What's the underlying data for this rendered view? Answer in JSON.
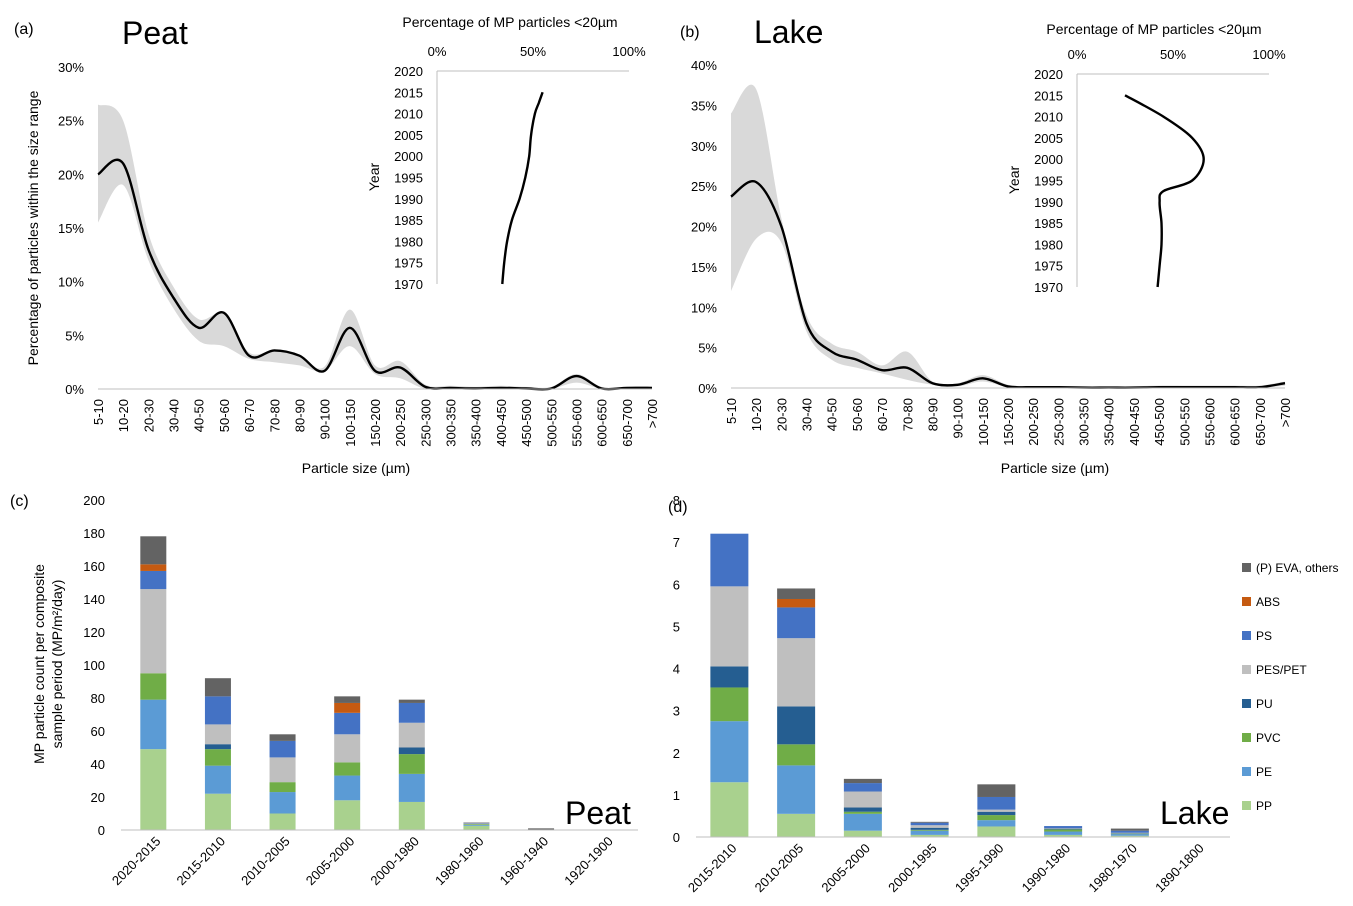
{
  "colors": {
    "band": "#d9d9d9",
    "line": "#000000",
    "axis": "#bfbfbf",
    "PP": "#a9d18e",
    "PE": "#5b9bd5",
    "PVC": "#70ad47",
    "PU": "#255e91",
    "PES/PET": "#bfbfbf",
    "PS": "#4472c4",
    "ABS": "#c55a11",
    "(P) EVA, others": "#636363"
  },
  "chart_data": [
    {
      "id": "a",
      "panel_label": "(a)",
      "type": "line",
      "title": "Peat",
      "xlabel": "Particle size (µm)",
      "ylabel": "Percentage of particles within the size range",
      "categories": [
        "5-10",
        "10-20",
        "20-30",
        "30-40",
        "40-50",
        "50-60",
        "60-70",
        "70-80",
        "80-90",
        "90-100",
        "100-150",
        "150-200",
        "200-250",
        "250-300",
        "300-350",
        "350-400",
        "400-450",
        "450-500",
        "500-550",
        "550-600",
        "600-650",
        "650-700",
        ">700"
      ],
      "ylim": [
        0,
        0.3
      ],
      "yticks": [
        "0%",
        "5%",
        "10%",
        "15%",
        "20%",
        "25%",
        "30%"
      ],
      "series": [
        {
          "values": [
            0.2,
            0.21,
            0.13,
            0.085,
            0.057,
            0.071,
            0.031,
            0.036,
            0.031,
            0.017,
            0.057,
            0.017,
            0.02,
            0.002,
            0.001,
            0.0005,
            0.001,
            0.0005,
            0.0005,
            0.012,
            0.0005,
            0.001,
            0.001
          ]
        }
      ],
      "band_lower": [
        0.155,
        0.19,
        0.12,
        0.075,
        0.045,
        0.04,
        0.028,
        0.025,
        0.022,
        0.017,
        0.04,
        0.014,
        0.01,
        0.0,
        0.0,
        0.0,
        0.0,
        0.0,
        0.0,
        0.006,
        0.0,
        0.0,
        0.0
      ],
      "band_upper": [
        0.265,
        0.25,
        0.145,
        0.095,
        0.065,
        0.07,
        0.034,
        0.036,
        0.031,
        0.021,
        0.074,
        0.022,
        0.026,
        0.004,
        0.003,
        0.002,
        0.003,
        0.002,
        0.002,
        0.014,
        0.002,
        0.002,
        0.002
      ],
      "inset": {
        "title": "Percentage of MP particles <20µm",
        "ylabel": "Year",
        "xticks": [
          "0%",
          "50%",
          "100%"
        ],
        "xlim": [
          0,
          1
        ],
        "yticks": [
          "2020",
          "2015",
          "2010",
          "2005",
          "2000",
          "1995",
          "1990",
          "1985",
          "1980",
          "1975",
          "1970"
        ],
        "ylim": [
          1970,
          2020
        ],
        "x": [
          0.34,
          0.35,
          0.365,
          0.39,
          0.43,
          0.46,
          0.48,
          0.49,
          0.51,
          0.53,
          0.55
        ],
        "y": [
          1970,
          1975,
          1980,
          1985,
          1990,
          1995,
          2000,
          2005,
          2010,
          2012.5,
          2015
        ]
      }
    },
    {
      "id": "b",
      "panel_label": "(b)",
      "type": "line",
      "title": "Lake",
      "xlabel": "Particle size (µm)",
      "ylabel": "",
      "categories": [
        "5-10",
        "10-20",
        "20-30",
        "30-40",
        "40-50",
        "50-60",
        "60-70",
        "70-80",
        "80-90",
        "90-100",
        "100-150",
        "150-200",
        "200-250",
        "250-300",
        "300-350",
        "350-400",
        "400-450",
        "450-500",
        "500-550",
        "550-600",
        "600-650",
        "650-700",
        ">700"
      ],
      "ylim": [
        0,
        0.4
      ],
      "yticks": [
        "0%",
        "5%",
        "10%",
        "15%",
        "20%",
        "25%",
        "30%",
        "35%",
        "40%"
      ],
      "series": [
        {
          "values": [
            0.237,
            0.255,
            0.2,
            0.08,
            0.045,
            0.035,
            0.022,
            0.025,
            0.006,
            0.004,
            0.012,
            0.002,
            0.001,
            0.001,
            0.0005,
            0.0005,
            0.0005,
            0.001,
            0.001,
            0.001,
            0.001,
            0.001,
            0.006
          ]
        }
      ],
      "band_lower": [
        0.12,
        0.185,
        0.18,
        0.07,
        0.035,
        0.025,
        0.018,
        0.01,
        0.004,
        0.002,
        0.008,
        0.001,
        0.0,
        0.0,
        0.0,
        0.0,
        0.0,
        0.0,
        0.0,
        0.0,
        0.0,
        0.0,
        0.003
      ],
      "band_upper": [
        0.34,
        0.37,
        0.21,
        0.09,
        0.055,
        0.045,
        0.028,
        0.045,
        0.008,
        0.006,
        0.016,
        0.004,
        0.002,
        0.002,
        0.001,
        0.001,
        0.002,
        0.003,
        0.003,
        0.003,
        0.003,
        0.003,
        0.008
      ],
      "inset": {
        "title": "Percentage of MP particles <20µm",
        "ylabel": "Year",
        "xticks": [
          "0%",
          "50%",
          "100%"
        ],
        "xlim": [
          0,
          1
        ],
        "yticks": [
          "2020",
          "2015",
          "2010",
          "2005",
          "2000",
          "1995",
          "1990",
          "1985",
          "1980",
          "1975",
          "1970"
        ],
        "ylim": [
          1970,
          2020
        ],
        "x": [
          0.42,
          0.43,
          0.44,
          0.44,
          0.43,
          0.45,
          0.6,
          0.66,
          0.6,
          0.45,
          0.25
        ],
        "y": [
          1970,
          1975,
          1980,
          1985,
          1990,
          1992.5,
          1995,
          2000,
          2005,
          2010,
          2015
        ]
      }
    },
    {
      "id": "c",
      "panel_label": "(c)",
      "type": "bar",
      "title": "Peat",
      "xlabel": "",
      "ylabel": "MP particle count per composite sample period (MP/m²/day)",
      "ylabel_lines": [
        "MP particle count per composite",
        "sample period (MP/m²/day)"
      ],
      "categories": [
        "2020-2015",
        "2015-2010",
        "2010-2005",
        "2005-2000",
        "2000-1980",
        "1980-1960",
        "1960-1940",
        "1920-1900"
      ],
      "ylim": [
        0,
        200
      ],
      "yticks": [
        "0",
        "20",
        "40",
        "60",
        "80",
        "100",
        "120",
        "140",
        "160",
        "180",
        "200"
      ],
      "series": [
        {
          "name": "PP",
          "values": [
            49,
            22,
            10,
            18,
            17,
            2.5,
            0,
            0
          ]
        },
        {
          "name": "PE",
          "values": [
            30,
            17,
            13,
            15,
            17,
            0.5,
            0,
            0
          ]
        },
        {
          "name": "PVC",
          "values": [
            16,
            10,
            6,
            8,
            12,
            0.5,
            0,
            0
          ]
        },
        {
          "name": "PU",
          "values": [
            0,
            3,
            0,
            0,
            4,
            0,
            0,
            0
          ]
        },
        {
          "name": "PES/PET",
          "values": [
            51,
            12,
            15,
            17,
            15,
            0.5,
            0,
            0
          ]
        },
        {
          "name": "PS",
          "values": [
            11,
            17,
            10,
            13,
            12,
            0.3,
            0,
            0
          ]
        },
        {
          "name": "ABS",
          "values": [
            4,
            0,
            0,
            6,
            0,
            0,
            0,
            0
          ]
        },
        {
          "name": "(P) EVA, others",
          "values": [
            17,
            11,
            4,
            4,
            2,
            0.2,
            1,
            0
          ]
        }
      ]
    },
    {
      "id": "d",
      "panel_label": "(d)",
      "type": "bar",
      "title": "Lake",
      "xlabel": "",
      "ylabel": "",
      "categories": [
        "2015-2010",
        "2010-2005",
        "2005-2000",
        "2000-1995",
        "1995-1990",
        "1990-1980",
        "1980-1970",
        "1890-1800"
      ],
      "ylim": [
        0,
        8
      ],
      "yticks": [
        "0",
        "1",
        "2",
        "3",
        "4",
        "5",
        "6",
        "7",
        "8"
      ],
      "legend_position": "right",
      "series": [
        {
          "name": "PP",
          "values": [
            1.3,
            0.55,
            0.15,
            0.05,
            0.25,
            0.05,
            0.03,
            0
          ]
        },
        {
          "name": "PE",
          "values": [
            1.45,
            1.15,
            0.4,
            0.1,
            0.15,
            0.08,
            0.04,
            0
          ]
        },
        {
          "name": "PVC",
          "values": [
            0.8,
            0.5,
            0.05,
            0.02,
            0.12,
            0.05,
            0.01,
            0
          ]
        },
        {
          "name": "PU",
          "values": [
            0.5,
            0.9,
            0.1,
            0.05,
            0.08,
            0.02,
            0.01,
            0
          ]
        },
        {
          "name": "PES/PET",
          "values": [
            1.9,
            1.62,
            0.38,
            0.06,
            0.05,
            0.01,
            0.01,
            0
          ]
        },
        {
          "name": "PS",
          "values": [
            1.25,
            0.73,
            0.2,
            0.06,
            0.3,
            0.05,
            0.05,
            0
          ]
        },
        {
          "name": "ABS",
          "values": [
            0,
            0.2,
            0,
            0,
            0,
            0,
            0,
            0
          ]
        },
        {
          "name": "(P) EVA, others",
          "values": [
            0,
            0.25,
            0.1,
            0.02,
            0.3,
            0.0,
            0.05,
            0
          ]
        }
      ]
    }
  ],
  "legend": {
    "items": [
      "(P) EVA, others",
      "ABS",
      "PS",
      "PES/PET",
      "PU",
      "PVC",
      "PE",
      "PP"
    ]
  }
}
